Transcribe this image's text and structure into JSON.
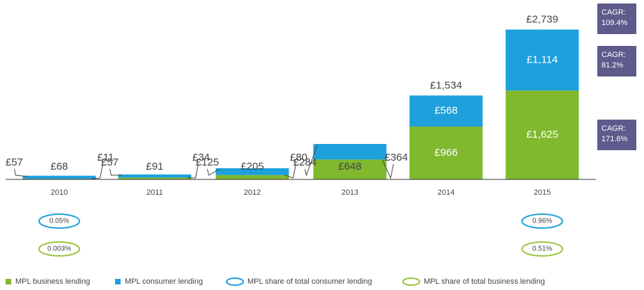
{
  "chart_data": {
    "type": "stacked-bar",
    "categories": [
      "2010",
      "2011",
      "2012",
      "2013",
      "2014",
      "2015"
    ],
    "series": [
      {
        "name": "MPL business lending",
        "color": "#80b82e",
        "values": [
          11,
          34,
          80,
          364,
          966,
          1625
        ],
        "value_labels": [
          "£11",
          "£34",
          "£80",
          "£364",
          "£966",
          "£1,625"
        ]
      },
      {
        "name": "MPL consumer lending",
        "color": "#1ea0dc",
        "values": [
          57,
          57,
          125,
          284,
          568,
          1114
        ],
        "value_labels": [
          "£57",
          "£57",
          "£125",
          "£284",
          "£568",
          "£1,114"
        ]
      }
    ],
    "totals": [
      68,
      91,
      205,
      648,
      1534,
      2739
    ],
    "total_labels": [
      "£68",
      "£91",
      "£205",
      "£648",
      "£1,534",
      "£2,739"
    ],
    "share_series": [
      {
        "name": "MPL share of total consumer lending",
        "color": "#1ea0dc",
        "values": [
          0.05,
          null,
          null,
          null,
          null,
          0.96
        ],
        "value_labels": [
          "0.05%",
          null,
          null,
          null,
          null,
          "0.96%"
        ]
      },
      {
        "name": "MPL share of total business lending",
        "color": "#9ac43c",
        "values": [
          0.003,
          null,
          null,
          null,
          null,
          0.51
        ],
        "value_labels": [
          "0.003%",
          null,
          null,
          null,
          null,
          "0.51%"
        ]
      }
    ],
    "annotations": [
      "CAGR:\n109.4%",
      "CAGR:\n81.2%",
      "CAGR:\n171.6%"
    ],
    "ylim": [
      0,
      3000
    ]
  }
}
